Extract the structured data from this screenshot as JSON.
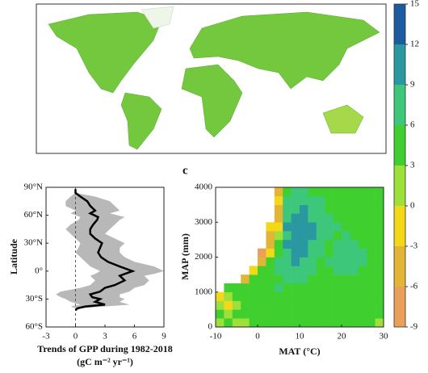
{
  "chart_data": [
    {
      "type": "colorbar",
      "ticks": [
        -9,
        -6,
        -3,
        0,
        3,
        6,
        9,
        12,
        15
      ],
      "colors": [
        "#e9a05a",
        "#e3b536",
        "#f3d81a",
        "#9ee03a",
        "#3fcf2f",
        "#3cc77a",
        "#2a98a0",
        "#1c5b9e"
      ]
    },
    {
      "type": "line",
      "orientation": "horizontal",
      "xlabel": "Trends of GPP during 1982-2018",
      "xlabel2": "(gC m⁻² yr⁻¹)",
      "ylabel": "Latitude",
      "xlim": [
        -3,
        9
      ],
      "xticks": [
        -3,
        0,
        3,
        6,
        9
      ],
      "ylim": [
        -60,
        90
      ],
      "yticks": [
        {
          "value": 90,
          "label": "90°N"
        },
        {
          "value": 60,
          "label": "60°N"
        },
        {
          "value": 30,
          "label": "30°N"
        },
        {
          "value": 0,
          "label": "0°"
        },
        {
          "value": -30,
          "label": "30°S"
        },
        {
          "value": -60,
          "label": "60°S"
        }
      ],
      "color": "#000000",
      "band_color": "#b8b8b8",
      "lat": [
        88,
        84,
        80,
        75,
        70,
        65,
        62,
        58,
        55,
        50,
        45,
        40,
        35,
        30,
        25,
        20,
        15,
        10,
        5,
        0,
        -3,
        -5,
        -10,
        -15,
        -18,
        -22,
        -25,
        -28,
        -30,
        -33,
        -36,
        -38,
        -40,
        -42
      ],
      "values": [
        0,
        0,
        0.5,
        1.2,
        1.5,
        2,
        1.5,
        2.3,
        2.2,
        1.8,
        1.5,
        1.5,
        2,
        2.7,
        2.5,
        2.3,
        2.6,
        3.3,
        4.5,
        5.8,
        5,
        4.5,
        5,
        4,
        3,
        2.5,
        1.5,
        1.7,
        2.5,
        2,
        3,
        1,
        0.2,
        0
      ],
      "band_lower": [
        0,
        0,
        -0.5,
        -1,
        -1,
        0,
        -0.5,
        0.5,
        0.3,
        -0.5,
        -1,
        -0.5,
        0,
        0.5,
        0.3,
        0,
        0.5,
        1,
        1.5,
        2.5,
        2,
        1.5,
        2,
        1.5,
        0.5,
        -1.5,
        -2,
        -1.5,
        -1,
        -0.5,
        0.5,
        -0.5,
        0,
        0
      ],
      "band_upper": [
        0,
        0,
        2,
        3.5,
        4,
        4.5,
        3.5,
        5,
        4.5,
        4,
        3.5,
        3,
        4,
        5,
        4.5,
        4.5,
        5,
        6,
        8,
        9,
        8,
        7,
        7.5,
        7,
        6,
        5.5,
        4.5,
        4.5,
        5,
        4.5,
        5.5,
        3,
        0.5,
        0
      ]
    },
    {
      "type": "heatmap",
      "panel": "c",
      "xlabel": "MAT (°C)",
      "ylabel": "MAP (mm)",
      "xlim": [
        -10,
        30
      ],
      "xticks": [
        -10,
        0,
        10,
        20,
        30
      ],
      "ylim": [
        0,
        4000
      ],
      "yticks": [
        0,
        1000,
        2000,
        3000,
        4000
      ],
      "x": [
        -9,
        -7,
        -5,
        -3,
        -1,
        1,
        3,
        5,
        7,
        9,
        11,
        13,
        15,
        17,
        19,
        21,
        23,
        25,
        27,
        29
      ],
      "y": [
        125,
        375,
        625,
        875,
        1125,
        1375,
        1625,
        1875,
        2125,
        2375,
        2625,
        2875,
        3125,
        3375,
        3625,
        3875
      ],
      "values": [
        [
          2,
          3,
          1,
          2,
          3,
          3,
          4,
          4,
          3,
          4,
          4,
          3,
          4,
          3,
          3,
          4,
          3,
          4,
          3,
          2
        ],
        [
          3,
          2,
          4,
          3,
          3,
          4,
          4,
          5,
          4,
          4,
          4,
          4,
          4,
          3,
          4,
          4,
          4,
          4,
          3,
          3
        ],
        [
          1,
          -1,
          2,
          3,
          4,
          4,
          5,
          4,
          5,
          4,
          5,
          4,
          4,
          4,
          5,
          4,
          4,
          4,
          4,
          3
        ],
        [
          -2,
          2,
          3,
          4,
          4,
          5,
          4,
          5,
          5,
          4,
          5,
          5,
          4,
          4,
          5,
          4,
          4,
          5,
          4,
          4
        ],
        [
          null,
          4,
          3,
          4,
          5,
          4,
          5,
          6,
          5,
          5,
          5,
          4,
          4,
          5,
          5,
          5,
          5,
          4,
          4,
          4
        ],
        [
          null,
          null,
          null,
          -4,
          3,
          4,
          5,
          5,
          6,
          7,
          6,
          5,
          5,
          5,
          5,
          5,
          5,
          5,
          4,
          4
        ],
        [
          null,
          null,
          null,
          null,
          -2,
          4,
          5,
          7,
          7,
          8,
          7,
          6,
          5,
          5,
          7,
          8,
          7,
          5,
          5,
          4
        ],
        [
          null,
          null,
          null,
          null,
          null,
          -5,
          3,
          6,
          8,
          9,
          8,
          6,
          5,
          6,
          8,
          8,
          8,
          6,
          5,
          5
        ],
        [
          null,
          null,
          null,
          null,
          null,
          -7,
          -3,
          5,
          8,
          10,
          9,
          7,
          6,
          5,
          7,
          8,
          8,
          6,
          5,
          4
        ],
        [
          null,
          null,
          null,
          null,
          null,
          null,
          -5,
          4,
          9,
          11,
          10,
          8,
          6,
          5,
          6,
          7,
          6,
          5,
          5,
          5
        ],
        [
          null,
          null,
          null,
          null,
          null,
          null,
          -6,
          2,
          8,
          11,
          10,
          9,
          7,
          6,
          5,
          6,
          5,
          5,
          4,
          4
        ],
        [
          null,
          null,
          null,
          null,
          null,
          null,
          -3,
          -1,
          9,
          10,
          11,
          9,
          8,
          6,
          6,
          5,
          5,
          5,
          5,
          4
        ],
        [
          null,
          null,
          null,
          null,
          null,
          null,
          null,
          -6,
          8,
          9,
          10,
          8,
          7,
          6,
          5,
          5,
          4,
          4,
          4,
          4
        ],
        [
          null,
          null,
          null,
          null,
          null,
          null,
          null,
          -4,
          7,
          8,
          9,
          7,
          6,
          5,
          5,
          4,
          4,
          5,
          4,
          4
        ],
        [
          null,
          null,
          null,
          null,
          null,
          null,
          null,
          -2,
          6,
          7,
          8,
          7,
          6,
          5,
          5,
          5,
          4,
          4,
          4,
          4
        ],
        [
          null,
          null,
          null,
          null,
          null,
          null,
          null,
          -6,
          5,
          6,
          6,
          5,
          5,
          5,
          4,
          4,
          4,
          4,
          4,
          4
        ]
      ]
    }
  ]
}
